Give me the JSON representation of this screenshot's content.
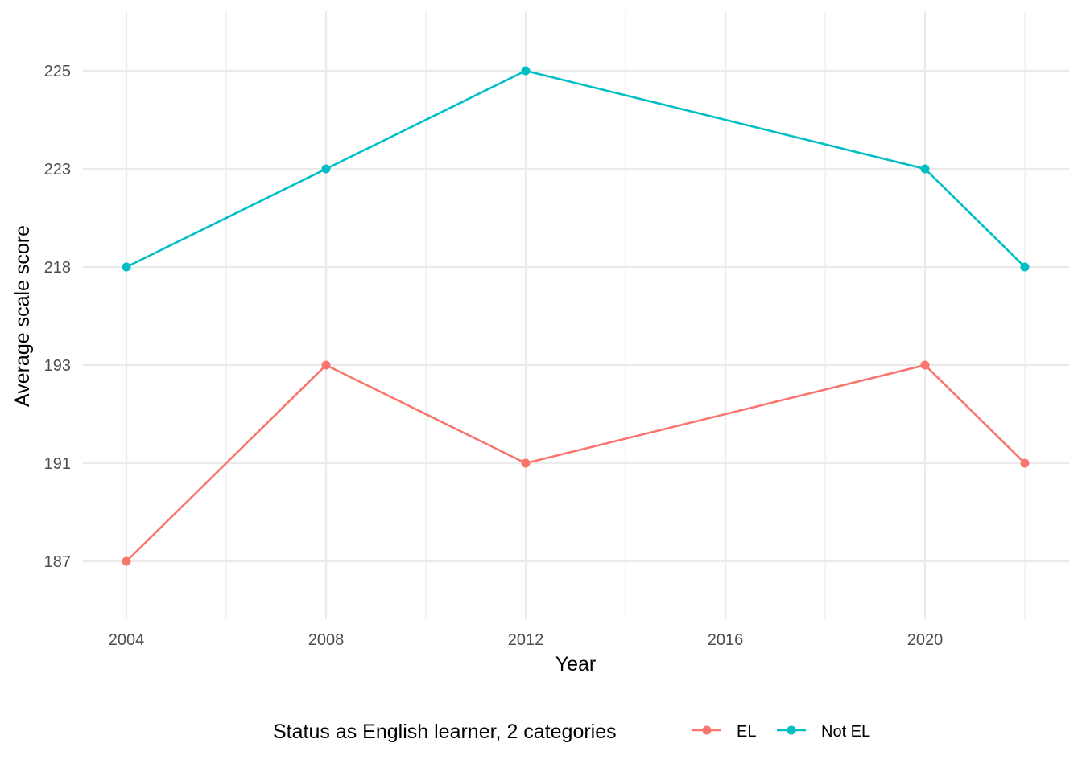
{
  "chart_data": {
    "type": "line",
    "title": "",
    "xlabel": "Year",
    "ylabel": "Average scale score",
    "x": [
      2004,
      2008,
      2012,
      2020,
      2022
    ],
    "x_ticks": [
      "2004",
      "2008",
      "2012",
      "2016",
      "2020"
    ],
    "y_ticks": [
      "187",
      "191",
      "193",
      "218",
      "223",
      "225"
    ],
    "y_axis_note": "discrete ordered axis of observed score values",
    "series": [
      {
        "name": "EL",
        "color": "#F8766D",
        "values": [
          187,
          193,
          191,
          193,
          191
        ]
      },
      {
        "name": "Not EL",
        "color": "#00BFC4",
        "values": [
          218,
          223,
          225,
          223,
          218
        ]
      }
    ],
    "legend": {
      "title": "Status as English learner, 2 categories",
      "position": "bottom"
    },
    "grid": true
  }
}
